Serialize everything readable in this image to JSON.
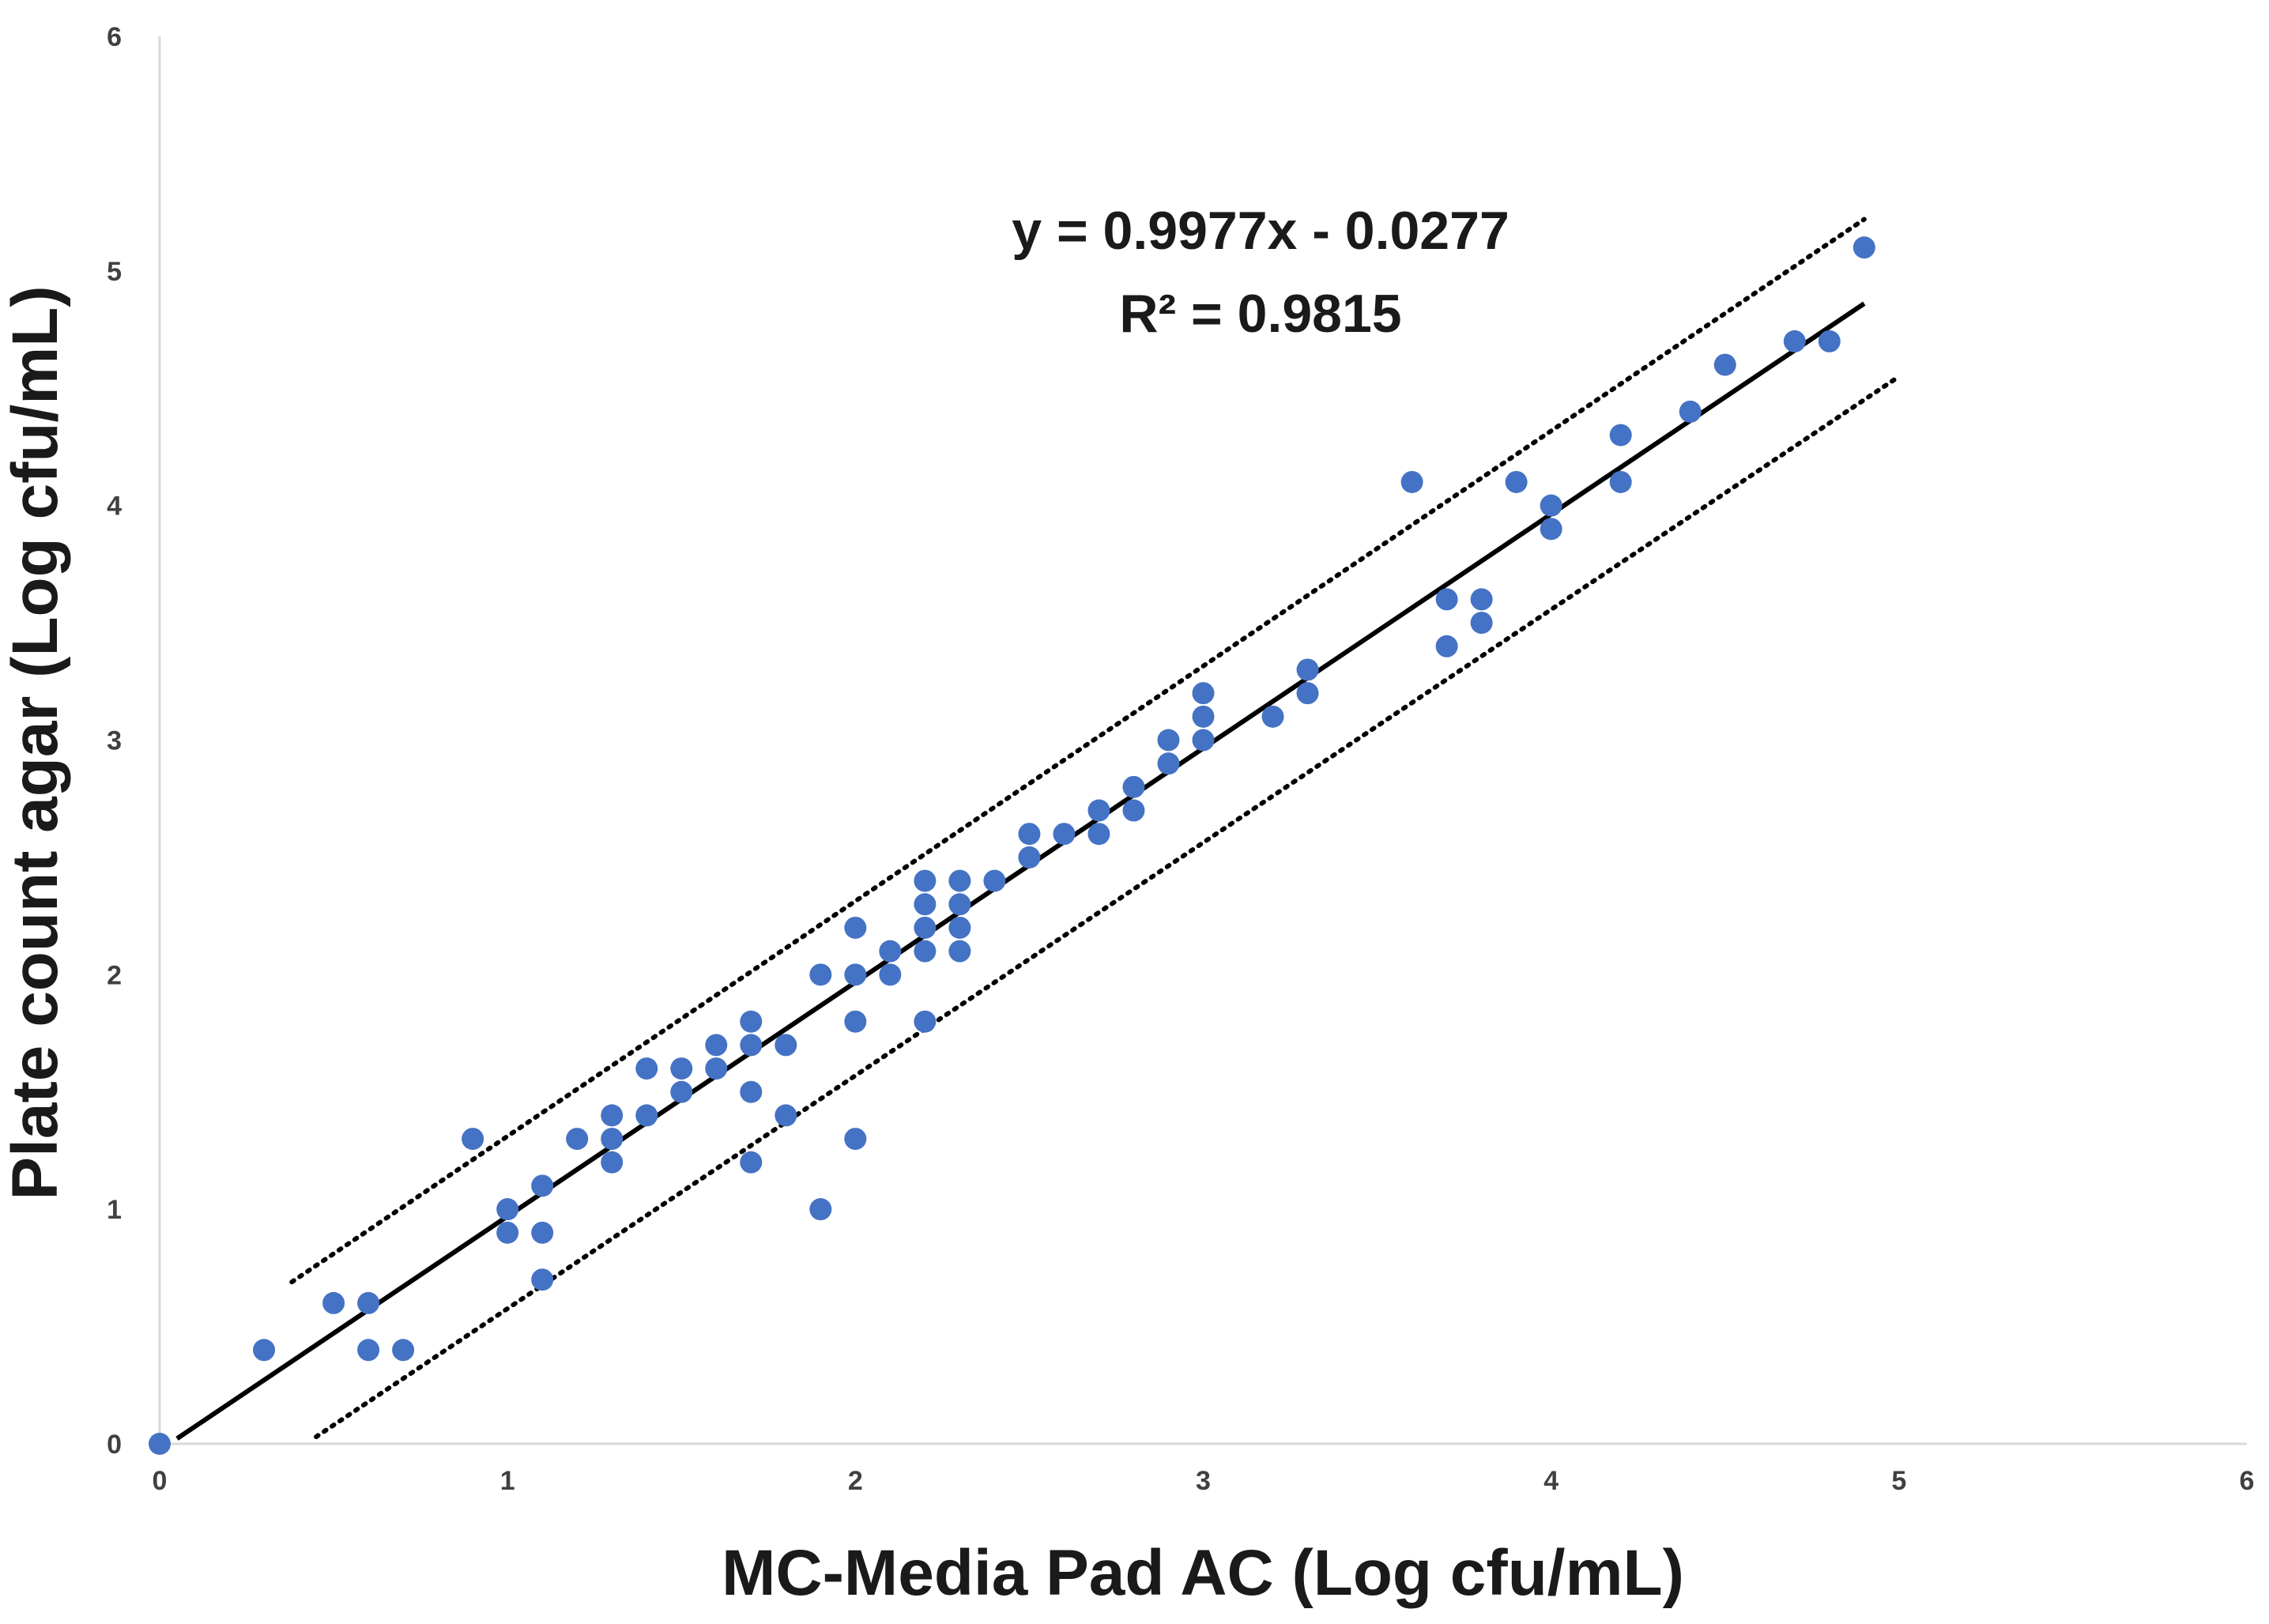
{
  "chart_data": {
    "type": "scatter",
    "xlabel": "MC-Media Pad AC (Log cfu/mL)",
    "ylabel": "Plate count agar (Log cfu/mL)",
    "xlim": [
      0,
      6
    ],
    "ylim": [
      0,
      6
    ],
    "x_ticks": [
      "0",
      "1",
      "2",
      "3",
      "4",
      "5",
      "6"
    ],
    "y_ticks": [
      "0",
      "1",
      "2",
      "3",
      "4",
      "5",
      "6"
    ],
    "grid": false,
    "colors": {
      "points": "#4472C4",
      "trendline": "#000000",
      "bounds": "#000000"
    },
    "series": [
      {
        "points": [
          [
            0,
            0
          ],
          [
            0.3,
            0.4
          ],
          [
            0.5,
            0.6
          ],
          [
            0.6,
            0.6
          ],
          [
            0.6,
            0.4
          ],
          [
            0.7,
            0.4
          ],
          [
            0.9,
            1.3
          ],
          [
            1.0,
            1.0
          ],
          [
            1.0,
            0.9
          ],
          [
            1.1,
            1.1
          ],
          [
            1.1,
            0.9
          ],
          [
            1.1,
            0.7
          ],
          [
            1.2,
            1.3
          ],
          [
            1.3,
            1.4
          ],
          [
            1.3,
            1.3
          ],
          [
            1.3,
            1.2
          ],
          [
            1.4,
            1.6
          ],
          [
            1.4,
            1.4
          ],
          [
            1.5,
            1.6
          ],
          [
            1.5,
            1.5
          ],
          [
            1.6,
            1.7
          ],
          [
            1.6,
            1.6
          ],
          [
            1.7,
            1.8
          ],
          [
            1.7,
            1.7
          ],
          [
            1.7,
            1.5
          ],
          [
            1.7,
            1.2
          ],
          [
            1.8,
            1.7
          ],
          [
            1.8,
            1.4
          ],
          [
            1.9,
            2.0
          ],
          [
            1.9,
            1.0
          ],
          [
            2.0,
            2.2
          ],
          [
            2.0,
            2.0
          ],
          [
            2.0,
            1.8
          ],
          [
            2.0,
            1.3
          ],
          [
            2.1,
            2.1
          ],
          [
            2.1,
            2.0
          ],
          [
            2.2,
            2.4
          ],
          [
            2.2,
            2.3
          ],
          [
            2.2,
            2.2
          ],
          [
            2.2,
            2.1
          ],
          [
            2.2,
            1.8
          ],
          [
            2.3,
            2.4
          ],
          [
            2.3,
            2.3
          ],
          [
            2.3,
            2.2
          ],
          [
            2.3,
            2.1
          ],
          [
            2.4,
            2.4
          ],
          [
            2.5,
            2.6
          ],
          [
            2.5,
            2.5
          ],
          [
            2.6,
            2.6
          ],
          [
            2.7,
            2.7
          ],
          [
            2.7,
            2.6
          ],
          [
            2.8,
            2.8
          ],
          [
            2.8,
            2.7
          ],
          [
            2.9,
            3.0
          ],
          [
            2.9,
            2.9
          ],
          [
            3.0,
            3.2
          ],
          [
            3.0,
            3.1
          ],
          [
            3.0,
            3.0
          ],
          [
            3.2,
            3.1
          ],
          [
            3.3,
            3.3
          ],
          [
            3.3,
            3.2
          ],
          [
            3.6,
            4.1
          ],
          [
            3.7,
            3.6
          ],
          [
            3.7,
            3.4
          ],
          [
            3.8,
            3.6
          ],
          [
            3.8,
            3.5
          ],
          [
            3.9,
            4.1
          ],
          [
            4.0,
            4.0
          ],
          [
            4.0,
            3.9
          ],
          [
            4.2,
            4.3
          ],
          [
            4.2,
            4.1
          ],
          [
            4.4,
            4.4
          ],
          [
            4.5,
            4.6
          ],
          [
            4.7,
            4.7
          ],
          [
            4.8,
            4.7
          ],
          [
            4.9,
            5.1
          ]
        ]
      }
    ],
    "trendline": {
      "slope": 0.9977,
      "intercept": -0.0277,
      "x_range": [
        0.05,
        4.9
      ],
      "equation": "y = 0.9977x - 0.0277",
      "r_squared": "R² = 0.9815"
    },
    "prediction_bounds": {
      "upper": {
        "from": [
          0.38,
          0.69
        ],
        "to": [
          4.9,
          5.22
        ]
      },
      "lower": {
        "from": [
          0.45,
          0.03
        ],
        "to": [
          4.99,
          4.54
        ]
      }
    }
  }
}
